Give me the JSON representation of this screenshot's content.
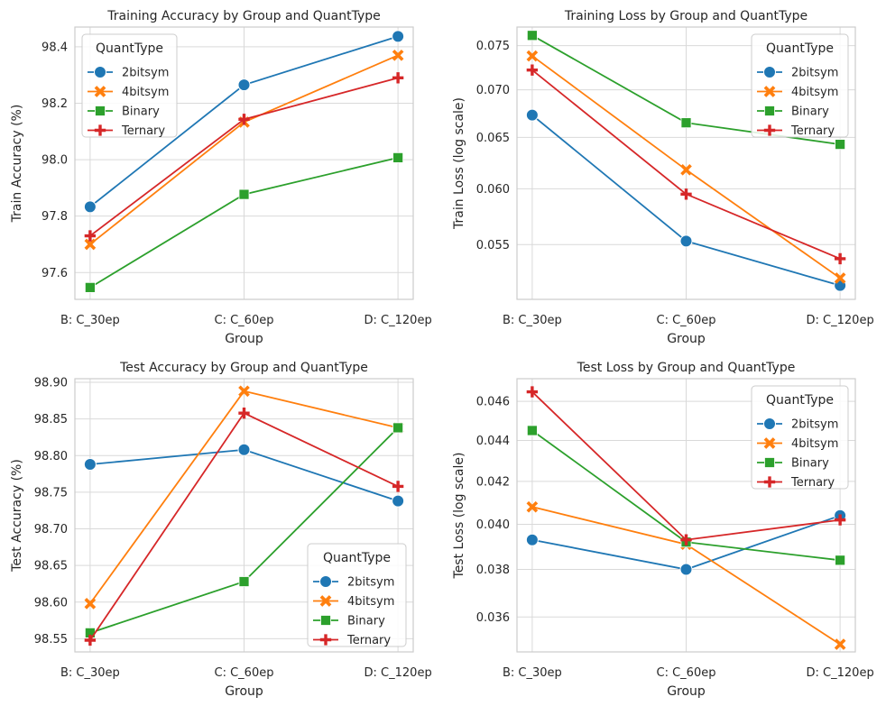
{
  "colors": {
    "2bitsym": "#1f77b4",
    "4bitsym": "#ff7f0e",
    "Binary": "#2ca02c",
    "Ternary": "#d62728",
    "grid": "#d9d9d9",
    "spine": "#cccccc",
    "background": "#ffffff"
  },
  "marker_icons": {
    "2bitsym": "circle-marker-icon",
    "4bitsym": "x-marker-icon",
    "Binary": "square-marker-icon",
    "Ternary": "plus-marker-icon"
  },
  "chart_data": [
    {
      "type": "line",
      "title": "Training Accuracy by Group and QuantType",
      "xlabel": "Group",
      "ylabel": "Train Accuracy (%)",
      "categories": [
        "B: C_30ep",
        "C: C_60ep",
        "D: C_120ep"
      ],
      "ylim": [
        97.505,
        98.47
      ],
      "yticks": [
        97.6,
        97.8,
        98.0,
        98.2,
        98.4
      ],
      "ytick_labels": [
        "97.6",
        "97.8",
        "98.0",
        "98.2",
        "98.4"
      ],
      "log_scale": false,
      "grid": true,
      "legend": {
        "title": "QuantType",
        "placement": "top-left"
      },
      "series": [
        {
          "name": "2bitsym",
          "values": [
            97.833,
            98.265,
            98.437
          ]
        },
        {
          "name": "4bitsym",
          "values": [
            97.7,
            98.133,
            98.37
          ]
        },
        {
          "name": "Binary",
          "values": [
            97.547,
            97.877,
            98.007
          ]
        },
        {
          "name": "Ternary",
          "values": [
            97.73,
            98.143,
            98.29
          ]
        }
      ]
    },
    {
      "type": "line",
      "title": "Training Loss by Group and QuantType",
      "xlabel": "Group",
      "ylabel": "Train Loss (log scale)",
      "categories": [
        "B: C_30ep",
        "C: C_60ep",
        "D: C_120ep"
      ],
      "ylim": [
        0.0505,
        0.0772
      ],
      "yticks": [
        0.055,
        0.06,
        0.065,
        0.07,
        0.075
      ],
      "ytick_labels": [
        "0.055",
        "0.060",
        "0.065",
        "0.070",
        "0.075"
      ],
      "log_scale": true,
      "grid": true,
      "legend": {
        "title": "QuantType",
        "placement": "top-right"
      },
      "series": [
        {
          "name": "2bitsym",
          "values": [
            0.0673,
            0.0553,
            0.0516
          ]
        },
        {
          "name": "4bitsym",
          "values": [
            0.0738,
            0.0618,
            0.0522
          ]
        },
        {
          "name": "Binary",
          "values": [
            0.0762,
            0.0665,
            0.0643
          ]
        },
        {
          "name": "Ternary",
          "values": [
            0.0722,
            0.0595,
            0.0538
          ]
        }
      ]
    },
    {
      "type": "line",
      "title": "Test Accuracy by Group and QuantType",
      "xlabel": "Group",
      "ylabel": "Test Accuracy (%)",
      "categories": [
        "B: C_30ep",
        "C: C_60ep",
        "D: C_120ep"
      ],
      "ylim": [
        98.532,
        98.905
      ],
      "yticks": [
        98.55,
        98.6,
        98.65,
        98.7,
        98.75,
        98.8,
        98.85,
        98.9
      ],
      "ytick_labels": [
        "98.55",
        "98.60",
        "98.65",
        "98.70",
        "98.75",
        "98.80",
        "98.85",
        "98.90"
      ],
      "log_scale": false,
      "grid": true,
      "legend": {
        "title": "QuantType",
        "placement": "bottom-right"
      },
      "series": [
        {
          "name": "2bitsym",
          "values": [
            98.788,
            98.808,
            98.738
          ]
        },
        {
          "name": "4bitsym",
          "values": [
            98.598,
            98.888,
            98.838
          ]
        },
        {
          "name": "Binary",
          "values": [
            98.558,
            98.628,
            98.838
          ]
        },
        {
          "name": "Ternary",
          "values": [
            98.548,
            98.858,
            98.758
          ]
        }
      ]
    },
    {
      "type": "line",
      "title": "Test Loss by Group and QuantType",
      "xlabel": "Group",
      "ylabel": "Test Loss (log scale)",
      "categories": [
        "B: C_30ep",
        "C: C_60ep",
        "D: C_120ep"
      ],
      "ylim": [
        0.0346,
        0.0472
      ],
      "yticks": [
        0.036,
        0.038,
        0.04,
        0.042,
        0.044,
        0.046
      ],
      "ytick_labels": [
        "0.036",
        "0.038",
        "0.040",
        "0.042",
        "0.044",
        "0.046"
      ],
      "log_scale": true,
      "grid": true,
      "legend": {
        "title": "QuantType",
        "placement": "top-right"
      },
      "series": [
        {
          "name": "2bitsym",
          "values": [
            0.0393,
            0.038,
            0.0404
          ]
        },
        {
          "name": "4bitsym",
          "values": [
            0.0408,
            0.0391,
            0.0349
          ]
        },
        {
          "name": "Binary",
          "values": [
            0.0445,
            0.0392,
            0.0384
          ]
        },
        {
          "name": "Ternary",
          "values": [
            0.0465,
            0.0393,
            0.0402
          ]
        }
      ]
    }
  ]
}
